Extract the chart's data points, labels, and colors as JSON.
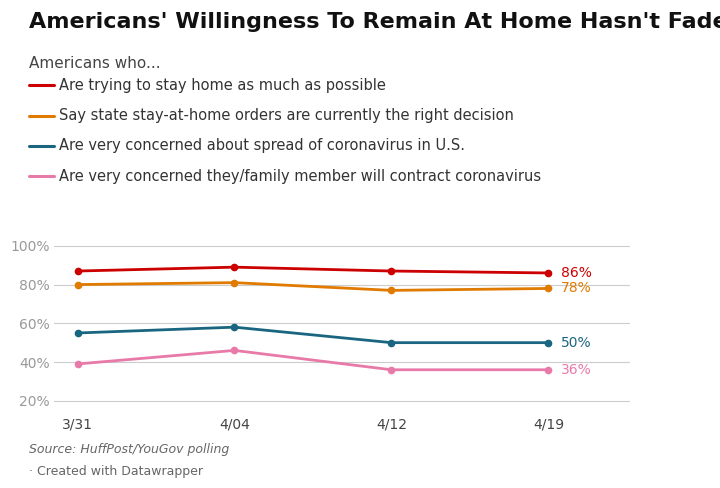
{
  "title": "Americans' Willingness To Remain At Home Hasn't Faded",
  "subtitle": "Americans who...",
  "legend": [
    {
      "label": "Are trying to stay home as much as possible",
      "color": "#cc0000"
    },
    {
      "label": "Say state stay-at-home orders are currently the right decision",
      "color": "#e07b00"
    },
    {
      "label": "Are very concerned about spread of coronavirus in U.S.",
      "color": "#1a6680"
    },
    {
      "label": "Are very concerned they/family member will contract coronavirus",
      "color": "#e87aaa"
    }
  ],
  "x_labels": [
    "3/31",
    "4/04",
    "4/12",
    "4/19"
  ],
  "series": [
    {
      "name": "stay_home",
      "color": "#cc0000",
      "values": [
        87,
        89,
        87,
        86
      ]
    },
    {
      "name": "state_orders",
      "color": "#e07b00",
      "values": [
        80,
        81,
        77,
        78
      ]
    },
    {
      "name": "concerned_spread",
      "color": "#1a6680",
      "values": [
        55,
        58,
        50,
        50
      ]
    },
    {
      "name": "concerned_contract",
      "color": "#e87aaa",
      "values": [
        39,
        46,
        36,
        36
      ]
    }
  ],
  "end_labels": [
    "86%",
    "78%",
    "50%",
    "36%"
  ],
  "yticks": [
    20,
    40,
    60,
    80,
    100
  ],
  "ylim": [
    14,
    106
  ],
  "source_text": "Source: HuffPost/YouGov polling",
  "credit_text": "· Created with Datawrapper",
  "background_color": "#ffffff",
  "grid_color": "#cccccc",
  "title_fontsize": 16,
  "subtitle_fontsize": 11,
  "legend_fontsize": 10.5,
  "axis_fontsize": 10
}
